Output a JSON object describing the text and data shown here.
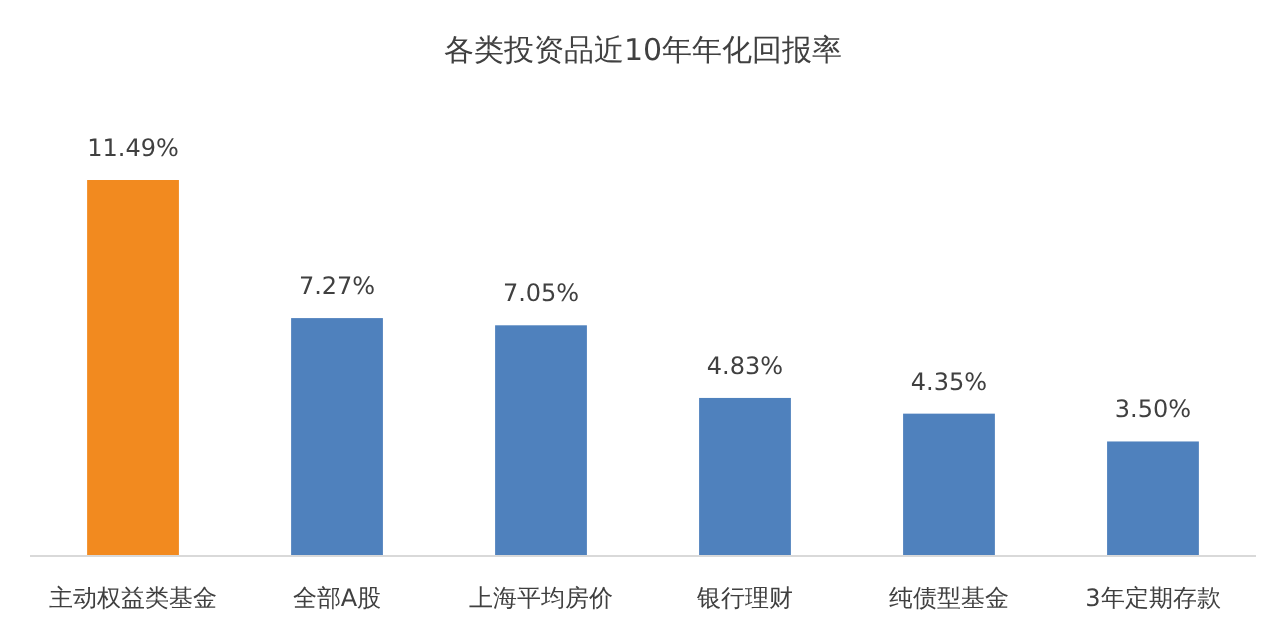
{
  "chart_data": {
    "type": "bar",
    "title": "各类投资品近10年年化回报率",
    "categories": [
      "主动权益类基金",
      "全部A股",
      "上海平均房价",
      "银行理财",
      "纯债型基金",
      "3年定期存款"
    ],
    "values": [
      11.49,
      7.27,
      7.05,
      4.83,
      4.35,
      3.5
    ],
    "value_labels": [
      "11.49%",
      "7.27%",
      "7.05%",
      "4.83%",
      "4.35%",
      "3.50%"
    ],
    "colors": [
      "#f28a1f",
      "#4f81bd",
      "#4f81bd",
      "#4f81bd",
      "#4f81bd",
      "#4f81bd"
    ]
  }
}
